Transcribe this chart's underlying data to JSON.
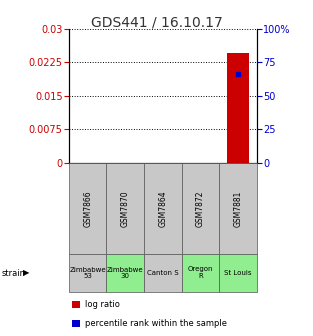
{
  "title": "GDS441 / 16.10.17",
  "samples": [
    "GSM7866",
    "GSM7870",
    "GSM7864",
    "GSM7872",
    "GSM7881"
  ],
  "strains": [
    "Zimbabwe\n53",
    "Zimbabwe\n30",
    "Canton S",
    "Oregon\nR",
    "St Louis"
  ],
  "strain_colors": [
    "#c8c8c8",
    "#90ee90",
    "#c8c8c8",
    "#90ee90",
    "#90ee90"
  ],
  "sample_colors": [
    "#c8c8c8",
    "#c8c8c8",
    "#c8c8c8",
    "#c8c8c8",
    "#c8c8c8"
  ],
  "log_ratio_values": [
    0,
    0,
    0,
    0,
    0.0245
  ],
  "percentile_values": [
    0,
    0,
    0,
    0,
    66
  ],
  "ylim_left": [
    0,
    0.03
  ],
  "ylim_right": [
    0,
    100
  ],
  "yticks_left": [
    0,
    0.0075,
    0.015,
    0.0225,
    0.03
  ],
  "yticks_right": [
    0,
    25,
    50,
    75,
    100
  ],
  "bar_color": "#cc0000",
  "dot_color": "#0000cc",
  "background_color": "#ffffff",
  "legend_bar_label": "log ratio",
  "legend_dot_label": "percentile rank within the sample",
  "left_tick_color": "#cc0000",
  "right_tick_color": "#0000cc",
  "title_color": "#333333",
  "title_fontsize": 10,
  "tick_fontsize": 7,
  "sample_fontsize": 5.5,
  "strain_fontsize": 5.0,
  "legend_fontsize": 6,
  "strain_label": "strain",
  "bar_width": 0.6
}
